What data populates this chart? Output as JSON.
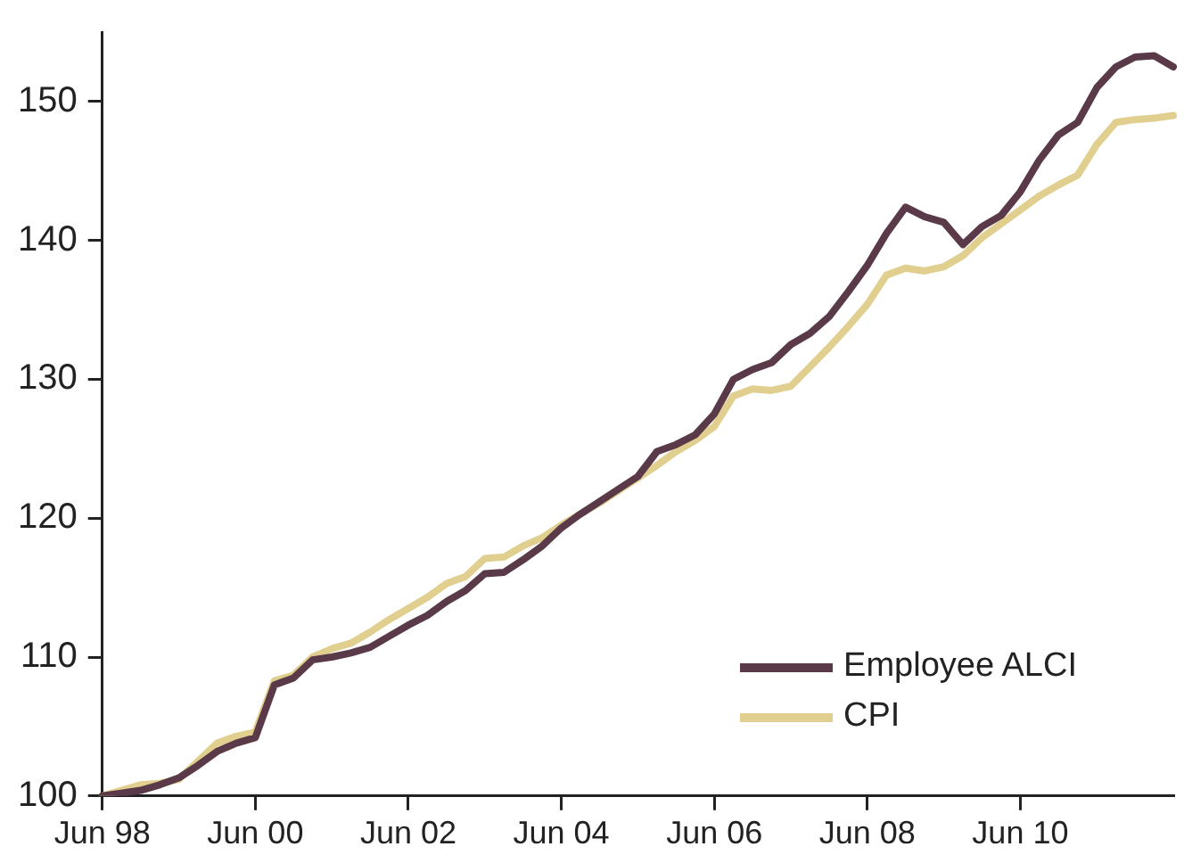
{
  "chart_data": {
    "type": "line",
    "categories": [
      "Jun 98",
      null,
      null,
      null,
      null,
      null,
      null,
      null,
      "Jun 00",
      null,
      null,
      null,
      null,
      null,
      null,
      null,
      "Jun 02",
      null,
      null,
      null,
      null,
      null,
      null,
      null,
      "Jun 04",
      null,
      null,
      null,
      null,
      null,
      null,
      null,
      "Jun 06",
      null,
      null,
      null,
      null,
      null,
      null,
      null,
      "Jun 08",
      null,
      null,
      null,
      null,
      null,
      null,
      null,
      "Jun 10",
      null,
      null,
      null,
      null,
      null,
      null,
      null,
      null
    ],
    "series": [
      {
        "name": "Employee ALCI",
        "color": "#5a3a48",
        "values": [
          100,
          100.2,
          100.4,
          100.8,
          101.3,
          102.2,
          103.2,
          103.8,
          104.2,
          108,
          108.5,
          109.8,
          110,
          110.3,
          110.7,
          111.5,
          112.3,
          113,
          114,
          114.8,
          116,
          116.1,
          117,
          118,
          119.3,
          120.3,
          121.2,
          122.1,
          123,
          124.8,
          125.3,
          126,
          127.5,
          130,
          130.7,
          131.2,
          132.5,
          133.3,
          134.5,
          136.3,
          138.2,
          140.5,
          142.4,
          141.7,
          141.3,
          139.7,
          141,
          141.8,
          143.5,
          145.8,
          147.6,
          148.5,
          151,
          152.5,
          153.2,
          153.3,
          152.5
        ]
      },
      {
        "name": "CPI",
        "color": "#e0cf8f",
        "values": [
          100,
          100.4,
          100.8,
          100.9,
          101.2,
          102.5,
          103.8,
          104.3,
          104.6,
          108.3,
          108.7,
          110,
          110.6,
          111,
          111.8,
          112.7,
          113.5,
          114.3,
          115.3,
          115.8,
          117.1,
          117.2,
          118,
          118.6,
          119.5,
          120.3,
          121.1,
          122,
          122.9,
          123.8,
          124.8,
          125.6,
          126.6,
          128.8,
          129.3,
          129.2,
          129.5,
          130.9,
          132.3,
          133.8,
          135.4,
          137.5,
          138,
          137.8,
          138.1,
          138.9,
          140.2,
          141.2,
          142.2,
          143.2,
          144,
          144.7,
          146.9,
          148.5,
          148.7,
          148.8,
          149
        ]
      }
    ],
    "ylim": [
      100,
      155
    ],
    "yticks": [
      100,
      110,
      120,
      130,
      140,
      150
    ],
    "grid": false,
    "legend": "bottom right",
    "marker": "none",
    "line_style": "solid"
  }
}
